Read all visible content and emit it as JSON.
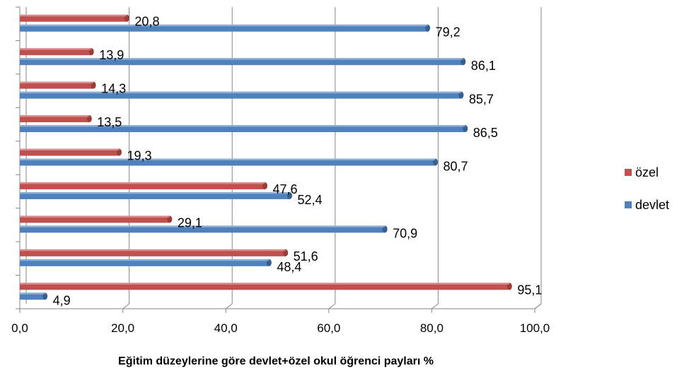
{
  "chart_data": {
    "type": "bar",
    "orientation": "horizontal",
    "xlim": [
      0,
      100
    ],
    "x_ticks": [
      "0,0",
      "20,0",
      "40,0",
      "60,0",
      "80,0",
      "100,0"
    ],
    "x_tick_values": [
      0,
      20,
      40,
      60,
      80,
      100
    ],
    "category_count": 9,
    "series": [
      {
        "name": "özel",
        "color": "#c0504d",
        "values": [
          95.1,
          51.6,
          29.1,
          47.6,
          19.3,
          13.5,
          14.3,
          13.9,
          20.8
        ],
        "labels": [
          "95,1",
          "51,6",
          "29,1",
          "47,6",
          "19,3",
          "13,5",
          "14,3",
          "13,9",
          "20,8"
        ]
      },
      {
        "name": "devlet",
        "color": "#4f81bd",
        "values": [
          4.9,
          48.4,
          70.9,
          52.4,
          80.7,
          86.5,
          85.7,
          86.1,
          79.2
        ],
        "labels": [
          "4,9",
          "48,4",
          "70,9",
          "52,4",
          "80,7",
          "86,5",
          "85,7",
          "86,1",
          "79,2"
        ]
      }
    ],
    "grid": true,
    "legend_position": "right",
    "caption": "Eğitim düzeylerine göre devlet+özel okul öğrenci payları %"
  }
}
